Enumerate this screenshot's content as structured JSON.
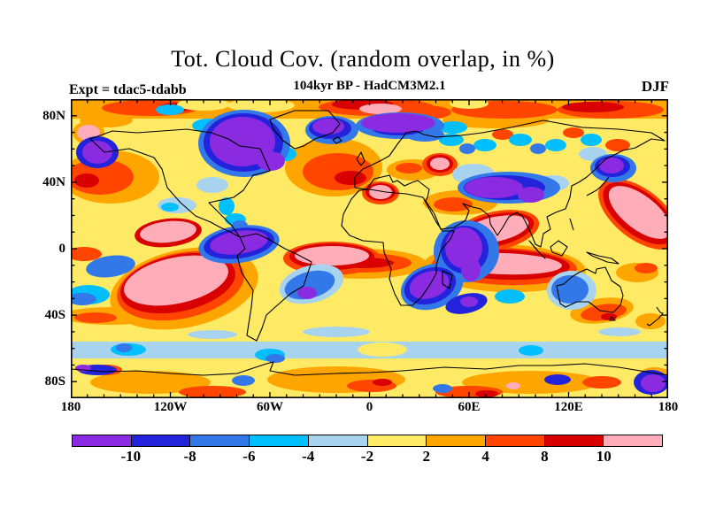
{
  "header": {
    "title": "Tot. Cloud Cov. (random overlap, in %)",
    "subtitle": "104kyr BP - HadCM3M2.1",
    "experiment_label": "Expt = tdac5-tdabb",
    "season_label": "DJF"
  },
  "map": {
    "y_axis": {
      "tick_labels": [
        "80N",
        "40N",
        "0",
        "40S",
        "80S"
      ]
    },
    "x_axis": {
      "tick_labels": [
        "180",
        "120W",
        "60W",
        "0",
        "60E",
        "120E",
        "180"
      ]
    }
  },
  "colorbar": {
    "labels": [
      "-10",
      "-8",
      "-6",
      "-4",
      "-2",
      "2",
      "4",
      "8",
      "10"
    ],
    "colors": [
      "#8A2BE2",
      "#2323DC",
      "#3378E8",
      "#00BFFF",
      "#A8D3EE",
      "#FFEA65",
      "#FFA500",
      "#FF4500",
      "#D80000",
      "#FFAEB9"
    ]
  },
  "chart_data": {
    "type": "heatmap",
    "title": "Tot. Cloud Cov. (random overlap, in %)",
    "subtitle": "104kyr BP - HadCM3M2.1",
    "experiment": "tdac5-tdabb",
    "season": "DJF",
    "units": "%",
    "projection": "equirectangular world map with coastlines",
    "x_axis_ticks": [
      "180",
      "120W",
      "60W",
      "0",
      "60E",
      "120E",
      "180"
    ],
    "y_axis_ticks": [
      "80N",
      "40N",
      "0",
      "40S",
      "80S"
    ],
    "lon_range_deg": [
      -180,
      180
    ],
    "lat_range_deg": [
      -90,
      90
    ],
    "contour_levels": [
      -10,
      -8,
      -6,
      -4,
      -2,
      2,
      4,
      8,
      10
    ],
    "palette": [
      {
        "range": "< -10",
        "color": "#8A2BE2"
      },
      {
        "range": "-10 to -8",
        "color": "#2323DC"
      },
      {
        "range": "-8 to -6",
        "color": "#3378E8"
      },
      {
        "range": "-6 to -4",
        "color": "#00BFFF"
      },
      {
        "range": "-4 to -2",
        "color": "#A8D3EE"
      },
      {
        "range": "-2 to 2",
        "color": "#FFEA65"
      },
      {
        "range": "2 to 4",
        "color": "#FFA500"
      },
      {
        "range": "4 to 8",
        "color": "#FF4500"
      },
      {
        "range": "8 to 10",
        "color": "#D80000"
      },
      {
        "range": "> 10",
        "color": "#FFAEB9"
      }
    ],
    "features": [
      "Strong negative anomalies (purple, < -10%): Hudson Bay / eastern Canada, Greenland, Scandinavia-Arctic Russia, central Asia, equatorial Africa, tropical east Pacific, southwest Indian Ocean, Antarctic coast near 150E, south of Madagascar",
      "Strong positive anomalies (pink, > 10%): subtropical southeast Pacific, tropical south Atlantic, Arabian Sea / India, northwest Pacific east of Japan, southern Indian Ocean near 20S, Caspian region, patches near the poles",
      "Broad orange/red positive bands across the Arctic rim, North Pacific, North Atlantic and mid-latitude storm tracks",
      "Light-blue negative circumpolar band along roughly 55-60S",
      "Near-zero background (pale yellow, -2 to 2%) over much of the tropics and continents"
    ],
    "legend_position": "horizontal colorbar below map",
    "grid": false
  }
}
